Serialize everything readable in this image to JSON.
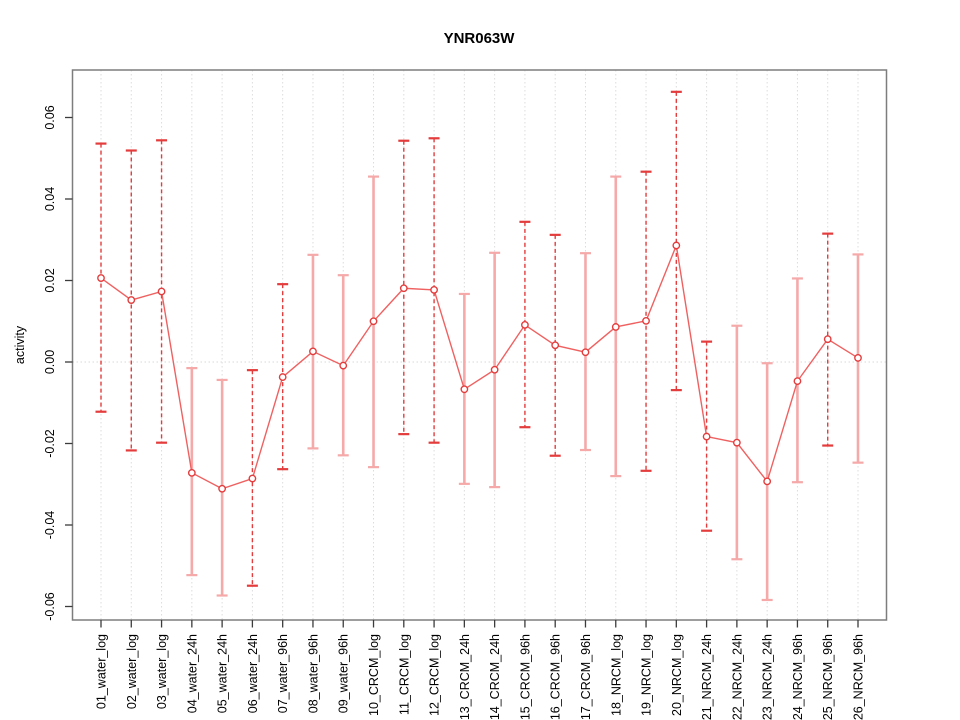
{
  "chart_data": {
    "type": "line",
    "title": "YNR063W",
    "xlabel": "",
    "ylabel": "activity",
    "legend": "none",
    "grid": "vertical-dotted-per-category, dotted-zero-line",
    "ylim": [
      -0.065,
      0.068
    ],
    "y_axis": {
      "tick_values": [
        -0.06,
        -0.04,
        -0.02,
        0.0,
        0.02,
        0.04,
        0.06
      ],
      "tick_labels": [
        "-0.06",
        "-0.04",
        "-0.02",
        "0.00",
        "0.02",
        "0.04",
        "0.06"
      ]
    },
    "categories": [
      "01_water_log",
      "02_water_log",
      "03_water_log",
      "04_water_24h",
      "05_water_24h",
      "06_water_24h",
      "07_water_96h",
      "08_water_96h",
      "09_water_96h",
      "10_CRCM_log",
      "11_CRCM_log",
      "12_CRCM_log",
      "13_CRCM_24h",
      "14_CRCM_24h",
      "15_CRCM_96h",
      "16_CRCM_96h",
      "17_CRCM_96h",
      "18_NRCM_log",
      "19_NRCM_log",
      "20_NRCM_log",
      "21_NRCM_24h",
      "22_NRCM_24h",
      "23_NRCM_24h",
      "24_NRCM_96h",
      "25_NRCM_96h",
      "26_NRCM_96h"
    ],
    "series": [
      {
        "name": "activity",
        "values": [
          0.0206,
          0.0152,
          0.0173,
          -0.0272,
          -0.0311,
          -0.0286,
          -0.0037,
          0.0026,
          -0.0009,
          0.01,
          0.0181,
          0.0177,
          -0.0067,
          -0.0019,
          0.0091,
          0.0041,
          0.0024,
          0.0086,
          0.0101,
          0.0286,
          -0.0183,
          -0.0198,
          -0.0293,
          -0.0047,
          0.0056,
          0.001
        ],
        "error_upper": [
          0.0536,
          0.0519,
          0.0544,
          -0.0015,
          -0.0044,
          -0.002,
          0.0191,
          0.0263,
          0.0213,
          0.0455,
          0.0543,
          0.0549,
          0.0167,
          0.0268,
          0.0344,
          0.0312,
          0.0267,
          0.0455,
          0.0467,
          0.0663,
          0.005,
          0.0089,
          -0.0003,
          0.0205,
          0.0315,
          0.0264
        ],
        "error_lower": [
          -0.0122,
          -0.0217,
          -0.0198,
          -0.0523,
          -0.0573,
          -0.0549,
          -0.0263,
          -0.0212,
          -0.0229,
          -0.0258,
          -0.0177,
          -0.0198,
          -0.0299,
          -0.0307,
          -0.016,
          -0.023,
          -0.0216,
          -0.028,
          -0.0267,
          -0.0069,
          -0.0414,
          -0.0484,
          -0.0584,
          -0.0295,
          -0.0205,
          -0.0247
        ],
        "bar_styles": [
          "dashed",
          "dashed",
          "dashed",
          "solid",
          "solid",
          "dashed",
          "dashed",
          "solid",
          "solid",
          "solid",
          "dashed",
          "dashed",
          "solid",
          "solid",
          "dashed",
          "dashed",
          "solid",
          "solid",
          "dashed",
          "dashed",
          "dashed",
          "solid",
          "solid",
          "solid",
          "dashed",
          "solid"
        ]
      }
    ],
    "colors": {
      "marker_stroke": "#e43c3c",
      "marker_fill": "#ffffff",
      "connect_line": "#ef6161",
      "errorbar_dashed": "#e43c3c",
      "errorbar_solid": "#f5a9a9",
      "gridline": "#dcdcdc",
      "zero_line": "#d9d9d9",
      "plot_border": "#7d7d7d",
      "tick": "#3c3c3c",
      "text": "#000000",
      "background": "#ffffff"
    }
  }
}
